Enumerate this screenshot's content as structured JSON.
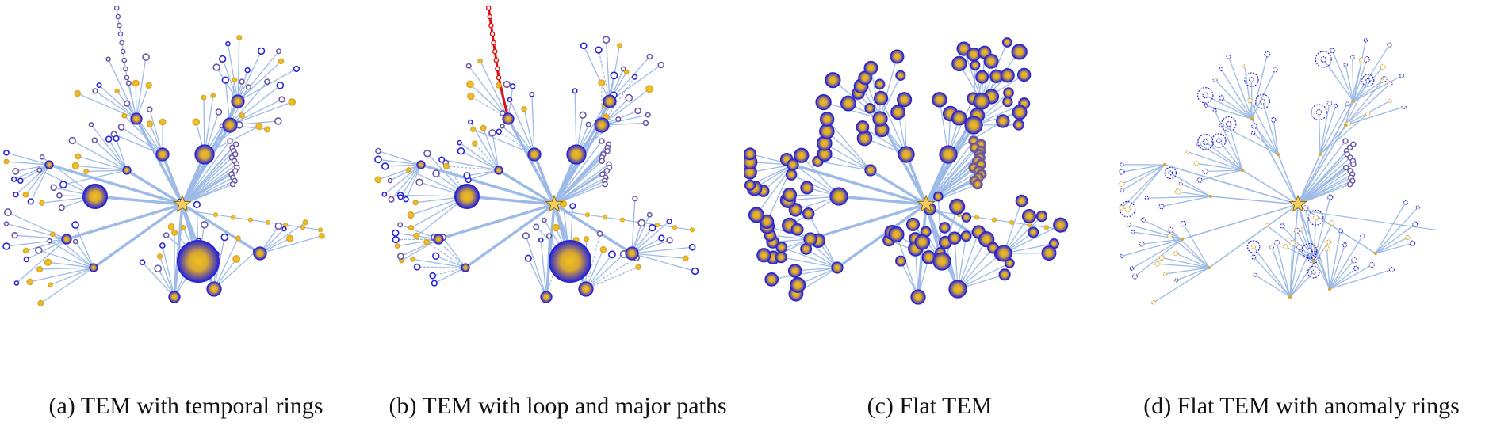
{
  "figure": {
    "panels": [
      {
        "id": "a",
        "caption": "(a) TEM with temporal rings",
        "style": "temporal-rings"
      },
      {
        "id": "b",
        "caption": "(b) TEM with loop and major paths",
        "style": "loop-major-paths"
      },
      {
        "id": "c",
        "caption": "(c) Flat TEM",
        "style": "flat"
      },
      {
        "id": "d",
        "caption": "(d) Flat TEM with anomaly rings",
        "style": "anomaly-rings"
      }
    ]
  },
  "colors": {
    "edge": "#9dbbe6",
    "ring_blue": "#2a25d6",
    "ring_purple": "#6b58a8",
    "node_gold": "#d9a830",
    "node_yellow": "#f0c020",
    "root_star": "#f5d060",
    "loop_path": "#e01010"
  },
  "icons": {
    "root": "star-icon"
  }
}
